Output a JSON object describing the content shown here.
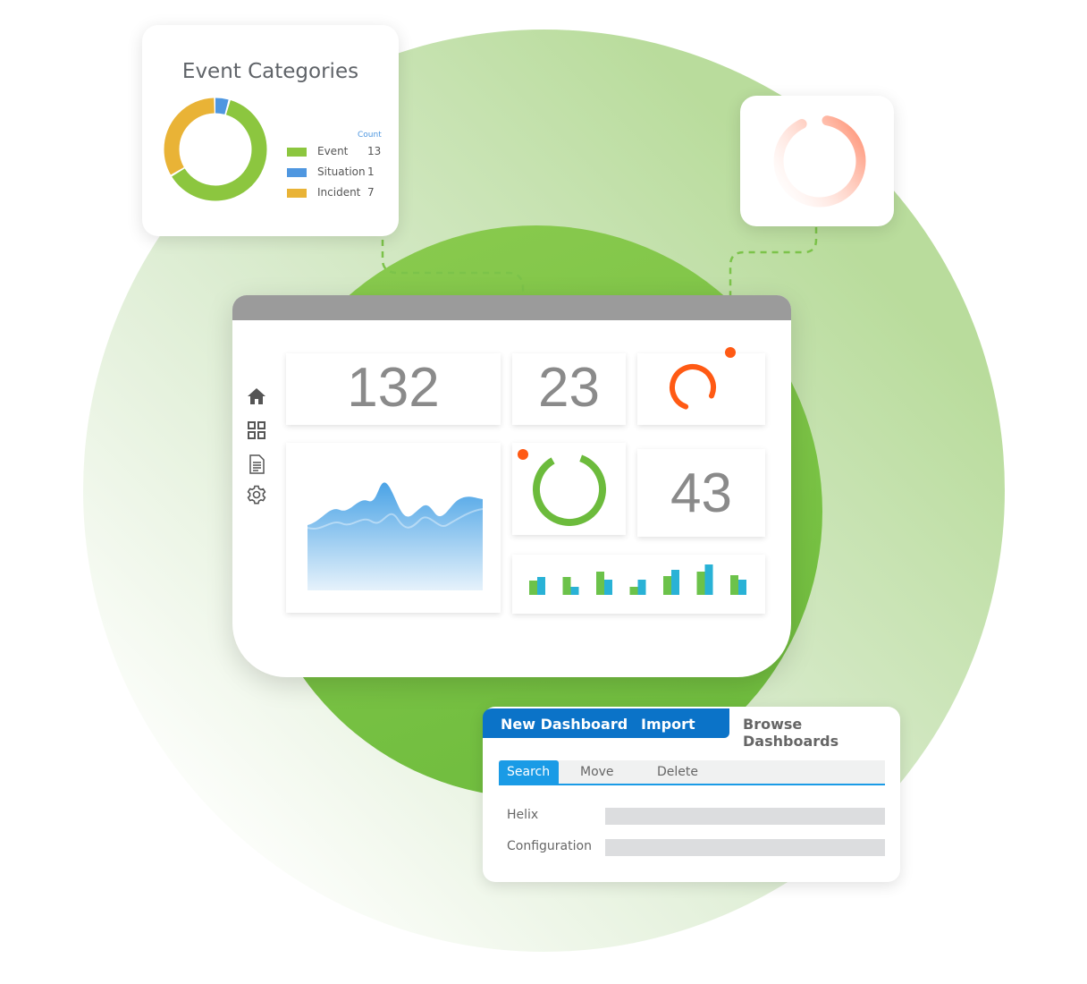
{
  "colors": {
    "event": "#8cc63f",
    "situation": "#4f97e0",
    "incident": "#e9b336",
    "accent_blue": "#0b73c8",
    "tab_active": "#1a9be6",
    "spinner": "#ff5a14"
  },
  "event_categories": {
    "title": "Event Categories",
    "count_header": "Count",
    "items": [
      {
        "label": "Event",
        "count": "13"
      },
      {
        "label": "Situation",
        "count": "1"
      },
      {
        "label": "Incident",
        "count": "7"
      }
    ]
  },
  "dashboard": {
    "tiles": {
      "total": "132",
      "second": "23",
      "third": "43"
    },
    "sidebar": [
      {
        "icon": "home-icon"
      },
      {
        "icon": "grid-icon"
      },
      {
        "icon": "document-icon"
      },
      {
        "icon": "gear-icon"
      }
    ],
    "mini_bars": [
      [
        16,
        20
      ],
      [
        20,
        9
      ],
      [
        26,
        17
      ],
      [
        9,
        17
      ],
      [
        21,
        28
      ],
      [
        26,
        34
      ],
      [
        22,
        17
      ]
    ]
  },
  "panel": {
    "tabs": {
      "new_dashboard": "New Dashboard",
      "import": "Import",
      "browse": "Browse Dashboards"
    },
    "subtabs": {
      "search": "Search",
      "move": "Move",
      "delete": "Delete"
    },
    "fields": [
      {
        "label": "Helix",
        "value": ""
      },
      {
        "label": "Configuration",
        "value": ""
      }
    ]
  }
}
